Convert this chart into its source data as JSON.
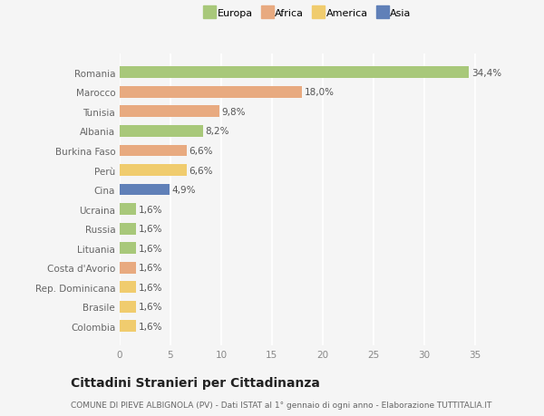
{
  "countries": [
    "Romania",
    "Marocco",
    "Tunisia",
    "Albania",
    "Burkina Faso",
    "Perù",
    "Cina",
    "Ucraina",
    "Russia",
    "Lituania",
    "Costa d'Avorio",
    "Rep. Dominicana",
    "Brasile",
    "Colombia"
  ],
  "values": [
    34.4,
    18.0,
    9.8,
    8.2,
    6.6,
    6.6,
    4.9,
    1.6,
    1.6,
    1.6,
    1.6,
    1.6,
    1.6,
    1.6
  ],
  "labels": [
    "34,4%",
    "18,0%",
    "9,8%",
    "8,2%",
    "6,6%",
    "6,6%",
    "4,9%",
    "1,6%",
    "1,6%",
    "1,6%",
    "1,6%",
    "1,6%",
    "1,6%",
    "1,6%"
  ],
  "continents": [
    "Europa",
    "Africa",
    "Africa",
    "Europa",
    "Africa",
    "America",
    "Asia",
    "Europa",
    "Europa",
    "Europa",
    "Africa",
    "America",
    "America",
    "America"
  ],
  "colors": {
    "Europa": "#a8c87a",
    "Africa": "#e8aa80",
    "America": "#f0cc6e",
    "Asia": "#6080b8"
  },
  "xlim": [
    0,
    37
  ],
  "title": "Cittadini Stranieri per Cittadinanza",
  "subtitle": "COMUNE DI PIEVE ALBIGNOLA (PV) - Dati ISTAT al 1° gennaio di ogni anno - Elaborazione TUTTITALIA.IT",
  "background_color": "#f5f5f5",
  "bar_height": 0.6,
  "grid_color": "#ffffff",
  "label_fontsize": 7.5,
  "tick_fontsize": 7.5,
  "title_fontsize": 10,
  "subtitle_fontsize": 6.5
}
